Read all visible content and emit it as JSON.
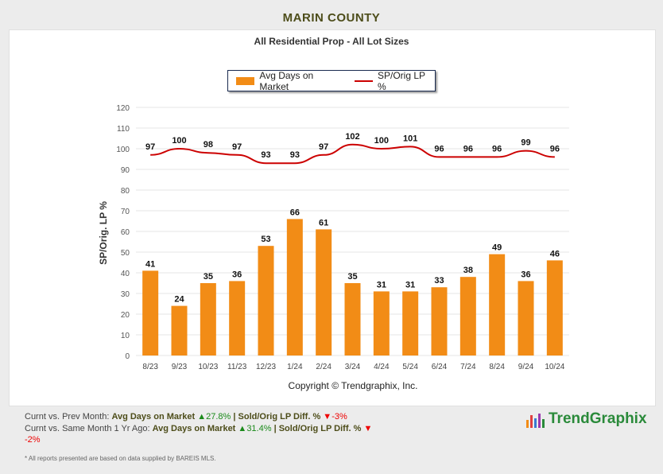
{
  "page_title": "MARIN COUNTY",
  "chart_data": {
    "type": "bar+line",
    "title": "All Residential Prop - All Lot Sizes",
    "ylabel": "SP/Orig. LP %",
    "ylim": [
      0,
      120
    ],
    "yticks": [
      0,
      10,
      20,
      30,
      40,
      50,
      60,
      70,
      80,
      90,
      100,
      110,
      120
    ],
    "grid": true,
    "legend_position": "top-center",
    "categories": [
      "8/23",
      "9/23",
      "10/23",
      "11/23",
      "12/23",
      "1/24",
      "2/24",
      "3/24",
      "4/24",
      "5/24",
      "6/24",
      "7/24",
      "8/24",
      "9/24",
      "10/24"
    ],
    "series": [
      {
        "name": "Avg Days on Market",
        "type": "bar",
        "color": "#f28c16",
        "values": [
          41,
          24,
          35,
          36,
          53,
          66,
          61,
          35,
          31,
          31,
          33,
          38,
          49,
          36,
          46
        ]
      },
      {
        "name": "SP/Orig LP %",
        "type": "line",
        "color": "#cc0000",
        "values": [
          97,
          100,
          98,
          97,
          93,
          93,
          97,
          102,
          100,
          101,
          96,
          96,
          96,
          99,
          96
        ]
      }
    ],
    "copyright": "Copyright © Trendgraphix, Inc."
  },
  "footer": {
    "prev_label": "Curnt vs. Prev Month:",
    "same_label": "Curnt vs. Same Month 1 Yr Ago:",
    "adom": "Avg Days on Market",
    "sold": "| Sold/Orig LP Diff. %",
    "prev_adom": "27.8%",
    "prev_sold": "-3%",
    "same_adom": "31.4%",
    "same_sold": "-2%",
    "note": "* All reports presented are based on data supplied by BAREIS MLS.",
    "logo": "TrendGraphix"
  }
}
